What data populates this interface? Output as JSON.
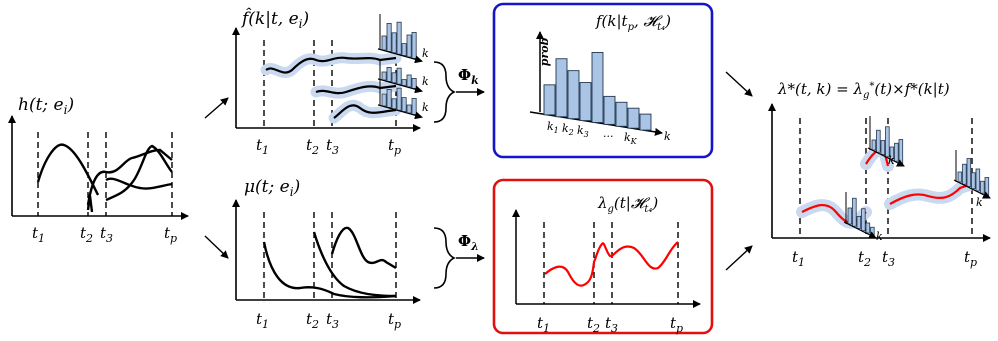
{
  "time_labels": [
    "t1",
    "t2",
    "t3",
    "tp"
  ],
  "panel_h": {
    "title": "h(t; e_i)",
    "ticks": [
      "t₁",
      "t₂",
      "t₃",
      "t_p"
    ]
  },
  "panel_fhat": {
    "title": "f̂(k|t, e_i)",
    "axis_k": "k",
    "ticks": [
      "t₁",
      "t₂",
      "t₃",
      "t_p"
    ]
  },
  "panel_mu": {
    "title": "μ(t; e_i)",
    "ticks": [
      "t₁",
      "t₂",
      "t₃",
      "t_p"
    ]
  },
  "op_phi_k": "Φ_k",
  "op_phi_lambda": "Φ_λ",
  "box_f": {
    "title": "f(k|t_p, 𝓗_t4)",
    "ylabel": "prob",
    "axis_k": "k",
    "ticks": [
      "k₁",
      "k₂",
      "k₃",
      "...",
      "k_K"
    ],
    "border_color": "#1414c8",
    "bar_color": "#a9c4e4"
  },
  "box_lambda": {
    "title": "λ_g(t|𝓗_t4)",
    "ticks": [
      "t₁",
      "t₂",
      "t₃",
      "t_p"
    ],
    "border_color": "#e01010",
    "curve_color": "#ff0000"
  },
  "panel_result": {
    "title": "λ*(t, k) = λ*_g(t) × f*(k|t)",
    "axis_k": "k",
    "ticks": [
      "t₁",
      "t₂",
      "t₃",
      "t_p"
    ]
  },
  "colors": {
    "band": "#c9daf0",
    "bar": "#a9c4e4",
    "bar_stroke": "#24384f"
  }
}
